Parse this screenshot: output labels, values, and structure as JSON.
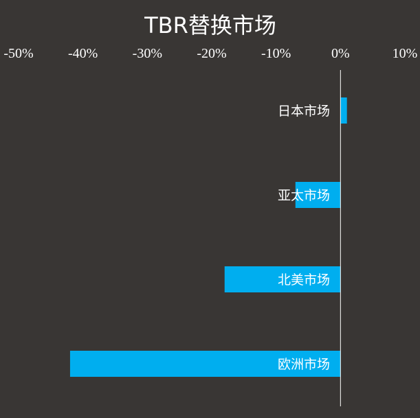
{
  "chart_data": {
    "type": "bar",
    "orientation": "horizontal",
    "title": "TBR替换市场",
    "xlabel": "",
    "ylabel": "",
    "categories": [
      "日本市场",
      "亚太市场",
      "北美市场",
      "欧洲市场"
    ],
    "values": [
      1,
      -7,
      -18,
      -42
    ],
    "value_unit": "%",
    "xlim": [
      -50,
      10
    ],
    "x_ticks": [
      -50,
      -40,
      -30,
      -20,
      -10,
      0,
      10
    ],
    "x_tick_labels": [
      "-50%",
      "-40%",
      "-30%",
      "-20%",
      "-10%",
      "0%",
      "10%"
    ],
    "x_axis_position": "top",
    "grid": false,
    "legend": "none",
    "colors": {
      "background": "#393634",
      "bar": "#00aeef",
      "text": "#ffffff",
      "axis": "#ffffff"
    }
  }
}
